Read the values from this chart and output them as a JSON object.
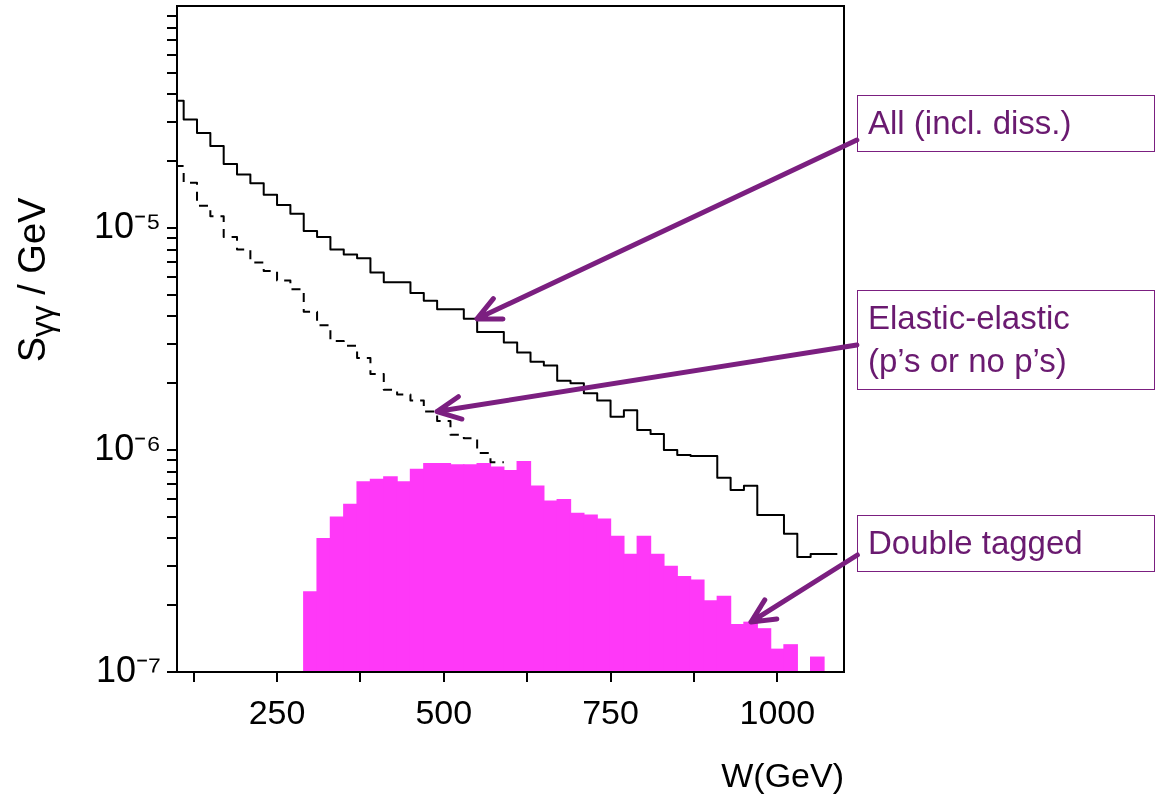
{
  "chart_data": {
    "type": "step",
    "xlabel": "W(GeV)",
    "ylabel": "S$_{γγ}$ / GeV",
    "log": true,
    "x": [
      100,
      110,
      130,
      150,
      170,
      190,
      210,
      230,
      250,
      270,
      290,
      310,
      330,
      350,
      370,
      390,
      410,
      430,
      450,
      470,
      490,
      510,
      530,
      550,
      570,
      590,
      610,
      630,
      650,
      670,
      690,
      710,
      730,
      750,
      770,
      790,
      810,
      830,
      850,
      870,
      890,
      910,
      930,
      950,
      970,
      990,
      1010,
      1030,
      1050,
      1070,
      1090
    ],
    "xlim": [
      100,
      1100
    ],
    "xticks": [
      {
        "value": 125,
        "label": null
      },
      250,
      {
        "value": 375,
        "label": null
      },
      500,
      {
        "value": 625,
        "label": null
      },
      750,
      {
        "value": 875,
        "label": null
      },
      1000
    ],
    "ylim": [
      1e-07,
      0.0001
    ],
    "yticks": [
      {
        "value": 1e-07,
        "label": "10⁻⁷"
      },
      {
        "value": 2e-07,
        "label": null
      },
      {
        "value": 3e-07,
        "label": null
      },
      {
        "value": 4e-07,
        "label": null
      },
      {
        "value": 5e-07,
        "label": null
      },
      {
        "value": 6e-07,
        "label": null
      },
      {
        "value": 7e-07,
        "label": null
      },
      {
        "value": 8e-07,
        "label": null
      },
      {
        "value": 9e-07,
        "label": null
      },
      {
        "value": 1e-06,
        "label": "10⁻⁶"
      },
      {
        "value": 2e-06,
        "label": null
      },
      {
        "value": 3e-06,
        "label": null
      },
      {
        "value": 4e-06,
        "label": null
      },
      {
        "value": 5e-06,
        "label": null
      },
      {
        "value": 6e-06,
        "label": null
      },
      {
        "value": 7e-06,
        "label": null
      },
      {
        "value": 8e-06,
        "label": null
      },
      {
        "value": 9e-06,
        "label": null
      },
      {
        "value": 1e-05,
        "label": "10⁻⁵"
      },
      {
        "value": 2e-05,
        "label": null
      },
      {
        "value": 3e-05,
        "label": null
      },
      {
        "value": 4e-05,
        "label": null
      },
      {
        "value": 5e-05,
        "label": null
      },
      {
        "value": 6e-05,
        "label": null
      },
      {
        "value": 7e-05,
        "label": null
      },
      {
        "value": 8e-05,
        "label": null
      },
      {
        "value": 9e-05,
        "label": null
      }
    ],
    "series": [
      {
        "color": "#000000",
        "line_style": "solid",
        "values": [
          4.65e-05,
          3.74e-05,
          3.08e-05,
          2.68e-05,
          2.34e-05,
          1.94e-05,
          1.74e-05,
          1.59e-05,
          1.41e-05,
          1.27e-05,
          1.16e-05,
          9.7e-06,
          9.1e-06,
          8e-06,
          7.6e-06,
          7.3e-06,
          6.3e-06,
          5.7e-06,
          5.7e-06,
          5.1e-06,
          4.7e-06,
          4.3e-06,
          4.3e-06,
          3.9e-06,
          3.4e-06,
          3.4e-06,
          3.05e-06,
          2.75e-06,
          2.5e-06,
          2.4e-06,
          2.05e-06,
          2e-06,
          1.8e-06,
          1.67e-06,
          1.41e-06,
          1.51e-06,
          1.23e-06,
          1.18e-06,
          1e-06,
          9.5e-07,
          9.4e-07,
          9.4e-07,
          7.5e-07,
          6.6e-07,
          6.9e-07,
          5.1e-07,
          5.1e-07,
          4.2e-07,
          3.3e-07,
          3.4e-07,
          3.4e-07
        ]
      },
      {
        "color": "#000000",
        "line_style": "dashed",
        "values": [
          2.3e-05,
          1.9e-05,
          1.6e-05,
          1.26e-05,
          1.13e-05,
          9.1e-06,
          8e-06,
          7e-06,
          6.4e-06,
          5.8e-06,
          5.3e-06,
          4.2e-06,
          3.65e-06,
          3.1e-06,
          2.95e-06,
          2.6e-06,
          2.2e-06,
          1.87e-06,
          1.78e-06,
          1.67e-06,
          1.49e-06,
          1.35e-06,
          1.17e-06,
          1.13e-06,
          9.7e-07,
          8.8e-07,
          null,
          null,
          null,
          null,
          null,
          null,
          null,
          null,
          null,
          null,
          null,
          null,
          null,
          null,
          null,
          null,
          null,
          null,
          null,
          null,
          null,
          null,
          null,
          null,
          null
        ]
      },
      {
        "type": "bar",
        "color": "#ff38f8",
        "x": [
          300,
          320,
          340,
          360,
          380,
          400,
          420,
          440,
          460,
          480,
          500,
          520,
          540,
          560,
          580,
          600,
          620,
          640,
          660,
          680,
          700,
          720,
          740,
          760,
          780,
          800,
          820,
          840,
          860,
          880,
          900,
          920,
          940,
          960,
          980,
          1000,
          1020,
          1040,
          1060
        ],
        "values": [
          2.3e-07,
          4e-07,
          5e-07,
          5.7e-07,
          7.2e-07,
          7.4e-07,
          7.6e-07,
          7.2e-07,
          8.2e-07,
          8.7e-07,
          8.7e-07,
          8.6e-07,
          8.6e-07,
          8.7e-07,
          8.4e-07,
          8.1e-07,
          8.9e-07,
          6.9e-07,
          5.9e-07,
          6e-07,
          5.2e-07,
          5.1e-07,
          4.9e-07,
          4.1e-07,
          3.4e-07,
          4.1e-07,
          3.4e-07,
          3e-07,
          2.7e-07,
          2.6e-07,
          2.1e-07,
          2.2e-07,
          1.64e-07,
          1.68e-07,
          1.57e-07,
          1.27e-07,
          1.33e-07,
          null,
          1.17e-07
        ]
      }
    ],
    "annotations": [
      {
        "text": "All (incl. diss.)",
        "x": 550,
        "y": 3.9e-06
      },
      {
        "text": "Elastic-elastic\n(p’s or no p’s)",
        "x": 490,
        "y": 1.49e-06
      },
      {
        "text": "Double tagged",
        "x": 960,
        "y": 1.68e-07
      }
    ]
  }
}
